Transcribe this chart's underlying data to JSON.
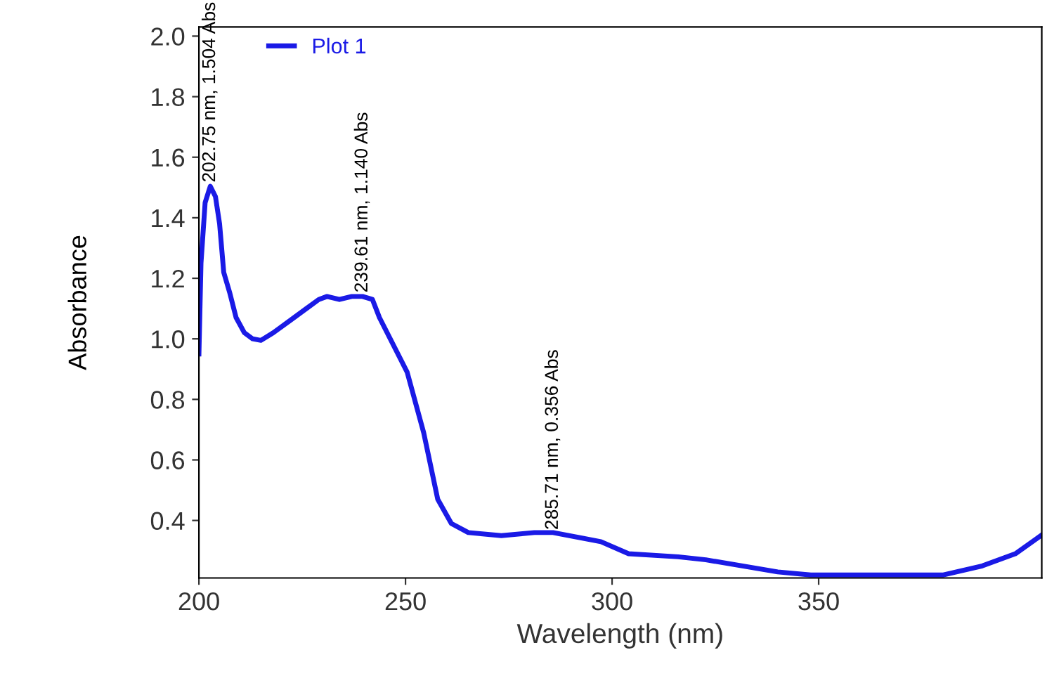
{
  "chart_data": {
    "type": "line",
    "xlabel": "Wavelength (nm)",
    "ylabel": "Absorbance",
    "xlim": [
      200,
      404
    ],
    "ylim": [
      0.21,
      2.03
    ],
    "xticks": [
      200,
      250,
      300,
      350
    ],
    "yticks": [
      {
        "value": 0.4,
        "label": "0.4"
      },
      {
        "value": 0.6,
        "label": "0.6"
      },
      {
        "value": 0.8,
        "label": "0.8"
      },
      {
        "value": 1.0,
        "label": "1.0"
      },
      {
        "value": 1.2,
        "label": "1.2"
      },
      {
        "value": 1.4,
        "label": "1.4"
      },
      {
        "value": 1.6,
        "label": "1.6"
      },
      {
        "value": 1.8,
        "label": "1.8"
      },
      {
        "value": 2.0,
        "label": "2.0"
      }
    ],
    "grid": false,
    "legend": "top left",
    "marker": "none",
    "line_style": "solid",
    "series": [
      {
        "name": "Plot 1",
        "color": "#1a1ae6",
        "x": [
          200,
          200.5,
          201.5,
          202.75,
          204,
          205,
          206,
          207.5,
          209,
          211,
          213,
          215,
          218,
          222,
          226,
          229,
          231,
          234,
          237,
          239.61,
          242,
          243.7,
          250.4,
          254.4,
          257.8,
          261.1,
          265.2,
          273.2,
          281.2,
          285.71,
          297.3,
          304,
          316,
          322.7,
          340.1,
          348.1,
          380.2,
          389.6,
          397.6,
          403.8
        ],
        "values": [
          0.95,
          1.25,
          1.45,
          1.504,
          1.47,
          1.38,
          1.22,
          1.15,
          1.07,
          1.02,
          1.0,
          0.995,
          1.02,
          1.06,
          1.1,
          1.13,
          1.14,
          1.13,
          1.14,
          1.14,
          1.13,
          1.07,
          0.89,
          0.69,
          0.47,
          0.39,
          0.36,
          0.35,
          0.36,
          0.36,
          0.33,
          0.29,
          0.28,
          0.27,
          0.23,
          0.22,
          0.22,
          0.25,
          0.29,
          0.35
        ]
      }
    ],
    "annotations": [
      {
        "text": "202.75 nm, 1.504 Abs",
        "x": 202.75,
        "y": 1.504
      },
      {
        "text": "239.61 nm, 1.140 Abs",
        "x": 239.61,
        "y": 1.14
      },
      {
        "text": "285.71 nm, 0.356 Abs",
        "x": 285.71,
        "y": 0.356
      }
    ]
  }
}
